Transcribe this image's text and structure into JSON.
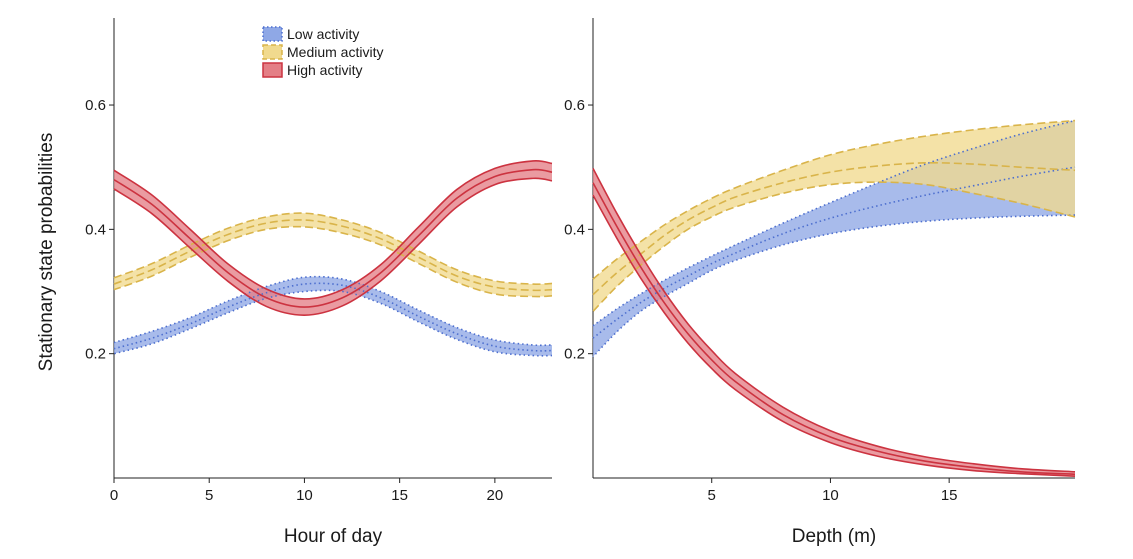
{
  "chart_data": {
    "type": "line",
    "ylabel": "Stationary state probabilities",
    "ylim": [
      0.0,
      0.74
    ],
    "yticks": [
      0.2,
      0.4,
      0.6
    ],
    "ytick_labels": [
      "0.2",
      "0.4",
      "0.6"
    ],
    "grid": false,
    "legend": {
      "position": "top-left of left panel",
      "entries": [
        "Low activity",
        "Medium activity",
        "High activity"
      ]
    },
    "series_styles": [
      {
        "name": "Low activity",
        "color": "#4d6fcf",
        "fill": "#8fa8e6",
        "dash": "dotted"
      },
      {
        "name": "Medium activity",
        "color": "#d9b44a",
        "fill": "#f1da8e",
        "dash": "dashed"
      },
      {
        "name": "High activity",
        "color": "#cc3340",
        "fill": "#e47f86",
        "dash": "solid"
      }
    ],
    "panels": [
      {
        "xlabel": "Hour of day",
        "xlim": [
          0,
          23
        ],
        "xticks": [
          0,
          5,
          10,
          15,
          20
        ],
        "xtick_labels": [
          "0",
          "5",
          "10",
          "15",
          "20"
        ],
        "x": [
          0,
          2,
          4,
          6,
          8,
          10,
          12,
          14,
          16,
          18,
          20,
          22,
          23
        ],
        "series": [
          {
            "name": "Low activity",
            "mean": [
              0.208,
              0.225,
              0.248,
              0.275,
              0.298,
              0.312,
              0.31,
              0.29,
              0.26,
              0.232,
              0.212,
              0.205,
              0.205
            ],
            "lower": [
              0.2,
              0.216,
              0.24,
              0.266,
              0.289,
              0.3,
              0.3,
              0.281,
              0.251,
              0.223,
              0.203,
              0.197,
              0.197
            ],
            "upper": [
              0.218,
              0.236,
              0.258,
              0.285,
              0.308,
              0.323,
              0.32,
              0.3,
              0.27,
              0.242,
              0.222,
              0.214,
              0.214
            ]
          },
          {
            "name": "Medium activity",
            "mean": [
              0.312,
              0.335,
              0.365,
              0.392,
              0.41,
              0.415,
              0.405,
              0.385,
              0.355,
              0.325,
              0.307,
              0.302,
              0.303
            ],
            "lower": [
              0.303,
              0.325,
              0.355,
              0.382,
              0.4,
              0.404,
              0.394,
              0.375,
              0.345,
              0.315,
              0.296,
              0.292,
              0.293
            ],
            "upper": [
              0.322,
              0.345,
              0.375,
              0.402,
              0.42,
              0.426,
              0.415,
              0.395,
              0.365,
              0.335,
              0.317,
              0.312,
              0.313
            ]
          },
          {
            "name": "High activity",
            "mean": [
              0.48,
              0.44,
              0.385,
              0.33,
              0.29,
              0.275,
              0.29,
              0.33,
              0.39,
              0.45,
              0.485,
              0.496,
              0.492
            ],
            "lower": [
              0.465,
              0.425,
              0.37,
              0.316,
              0.276,
              0.262,
              0.277,
              0.317,
              0.376,
              0.436,
              0.472,
              0.482,
              0.478
            ],
            "upper": [
              0.495,
              0.455,
              0.4,
              0.344,
              0.304,
              0.288,
              0.303,
              0.343,
              0.404,
              0.464,
              0.498,
              0.51,
              0.506
            ]
          }
        ]
      },
      {
        "xlabel": "Depth (m)",
        "xlim": [
          0,
          20.3
        ],
        "xticks": [
          5,
          10,
          15
        ],
        "xtick_labels": [
          "5",
          "10",
          "15"
        ],
        "x": [
          0,
          1,
          2,
          3,
          4,
          5,
          6,
          8,
          10,
          12,
          14,
          16,
          18,
          20.3
        ],
        "series": [
          {
            "name": "Low activity",
            "mean": [
              0.225,
              0.255,
              0.282,
              0.305,
              0.325,
              0.345,
              0.362,
              0.393,
              0.418,
              0.438,
              0.455,
              0.47,
              0.485,
              0.5
            ],
            "lower": [
              0.195,
              0.235,
              0.268,
              0.292,
              0.313,
              0.334,
              0.35,
              0.375,
              0.393,
              0.405,
              0.413,
              0.418,
              0.421,
              0.423
            ],
            "upper": [
              0.245,
              0.272,
              0.296,
              0.318,
              0.338,
              0.357,
              0.375,
              0.41,
              0.443,
              0.475,
              0.505,
              0.53,
              0.553,
              0.575
            ]
          },
          {
            "name": "Medium activity",
            "mean": [
              0.295,
              0.33,
              0.36,
              0.39,
              0.415,
              0.435,
              0.452,
              0.475,
              0.492,
              0.502,
              0.507,
              0.505,
              0.5,
              0.495
            ],
            "lower": [
              0.268,
              0.308,
              0.342,
              0.373,
              0.4,
              0.42,
              0.436,
              0.458,
              0.472,
              0.476,
              0.472,
              0.458,
              0.442,
              0.42
            ],
            "upper": [
              0.32,
              0.352,
              0.38,
              0.407,
              0.43,
              0.45,
              0.467,
              0.495,
              0.52,
              0.537,
              0.55,
              0.56,
              0.568,
              0.575
            ]
          },
          {
            "name": "High activity",
            "mean": [
              0.475,
              0.405,
              0.34,
              0.282,
              0.232,
              0.19,
              0.155,
              0.102,
              0.066,
              0.043,
              0.027,
              0.017,
              0.01,
              0.006
            ],
            "lower": [
              0.455,
              0.386,
              0.322,
              0.266,
              0.217,
              0.176,
              0.142,
              0.091,
              0.057,
              0.035,
              0.021,
              0.012,
              0.007,
              0.003
            ],
            "upper": [
              0.498,
              0.426,
              0.36,
              0.3,
              0.248,
              0.205,
              0.168,
              0.114,
              0.076,
              0.051,
              0.034,
              0.023,
              0.015,
              0.01
            ]
          }
        ]
      }
    ]
  }
}
